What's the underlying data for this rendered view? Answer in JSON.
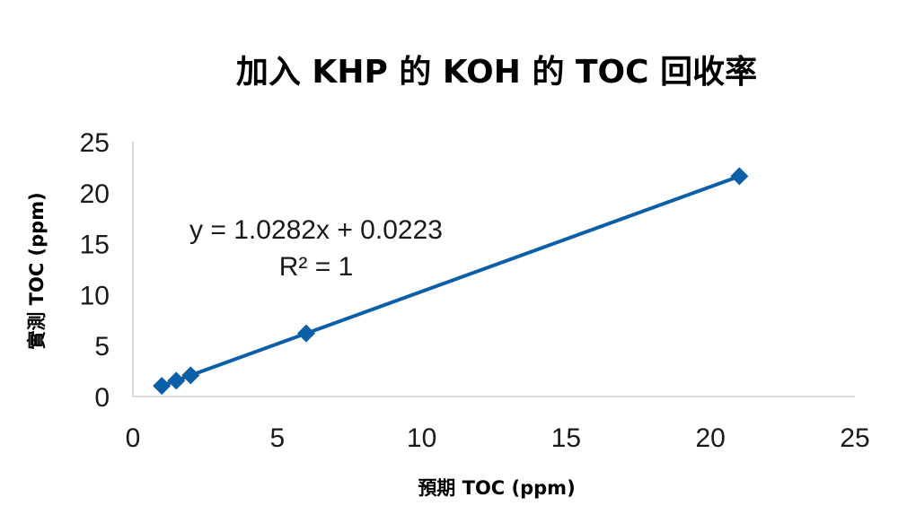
{
  "chart_data": {
    "type": "scatter",
    "title": "加入 KHP 的 KOH 的 TOC 回收率",
    "xlabel": "預期 TOC (ppm)",
    "ylabel": "實測 TOC (ppm)",
    "xlim": [
      0,
      25
    ],
    "ylim": [
      0,
      25
    ],
    "xticks": [
      0,
      5,
      10,
      15,
      20,
      25
    ],
    "yticks": [
      0,
      5,
      10,
      15,
      20,
      25
    ],
    "grid": false,
    "series": [
      {
        "x": [
          1,
          1.5,
          2,
          6,
          21
        ],
        "y": [
          1.05,
          1.55,
          2.08,
          6.19,
          21.62
        ],
        "color": "#0b5ea8",
        "marker": "diamond"
      }
    ],
    "trendline": {
      "type": "linear",
      "slope": 1.0282,
      "intercept": 0.0223,
      "x_range": [
        1,
        21
      ],
      "color": "#0b5ea8"
    },
    "annotations": {
      "equation": "y = 1.0282x + 0.0223",
      "r_squared": "R² = 1"
    },
    "axis_color": "#d9d9d9"
  }
}
